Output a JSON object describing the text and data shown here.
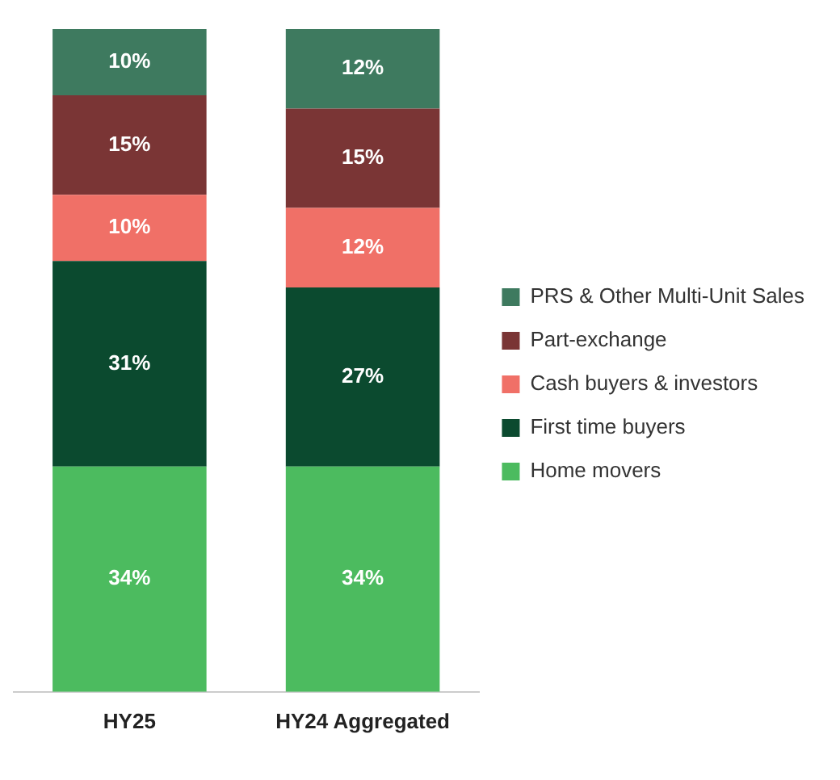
{
  "chart_data": {
    "type": "bar",
    "stacked": true,
    "categories": [
      "HY25",
      "HY24 Aggregated"
    ],
    "series": [
      {
        "name": "Home movers",
        "color": "#4cbb5f",
        "values": [
          34,
          34
        ],
        "value_labels": [
          "34%",
          "34%"
        ]
      },
      {
        "name": "First time buyers",
        "color": "#0b4a2f",
        "values": [
          31,
          27
        ],
        "value_labels": [
          "31%",
          "27%"
        ]
      },
      {
        "name": "Cash buyers & investors",
        "color": "#f07067",
        "values": [
          10,
          12
        ],
        "value_labels": [
          "10%",
          "12%"
        ]
      },
      {
        "name": "Part-exchange",
        "color": "#7a3535",
        "values": [
          15,
          15
        ],
        "value_labels": [
          "15%",
          "15%"
        ]
      },
      {
        "name": "PRS & Other Multi-Unit Sales",
        "color": "#3e7a5f",
        "values": [
          10,
          12
        ],
        "value_labels": [
          "10%",
          "12%"
        ]
      }
    ],
    "tick_labels": "x",
    "legend": "right",
    "grid": false
  }
}
